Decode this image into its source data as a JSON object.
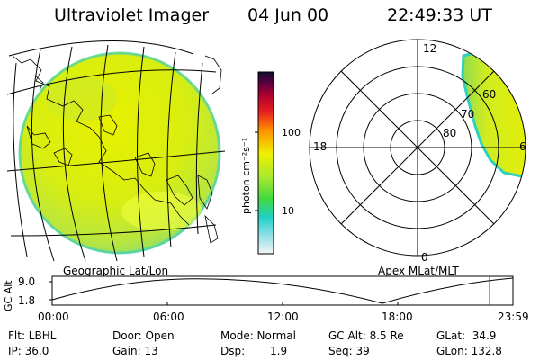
{
  "header": {
    "title": "Ultraviolet Imager",
    "date": "04 Jun 00",
    "time": "22:49:33 UT"
  },
  "colors": {
    "land_yellow": "#e8f000",
    "land_green": "#b8e640",
    "edge_cyan": "#30d0c0"
  },
  "colorbar": {
    "label": "photon cm⁻²s⁻¹",
    "ticks": [
      "100",
      "10"
    ]
  },
  "left_panel": {
    "caption": "Geographic Lat/Lon"
  },
  "right_panel": {
    "caption": "Apex MLat/MLT",
    "mlt_labels": {
      "top": "12",
      "left": "18",
      "right": "6",
      "bottom": "0"
    },
    "lat_labels": [
      "60",
      "70",
      "80"
    ]
  },
  "altitude_plot": {
    "ylabel": "GC Alt",
    "yticks": [
      "9.0",
      "1.8"
    ],
    "xticks": [
      "00:00",
      "06:00",
      "12:00",
      "18:00",
      "23:59"
    ]
  },
  "info": {
    "flt": "Flt: LBHL",
    "ip": "IP: 36.0",
    "door": "Door: Open",
    "gain": "Gain: 13",
    "mode": "Mode: Normal",
    "dsp_label": "Dsp:",
    "dsp_value": "1.9",
    "gc_alt": "GC Alt: 8.5 Re",
    "seq": "Seq: 39",
    "glat": "GLat:  34.9",
    "glon": "GLon: 132.8"
  }
}
